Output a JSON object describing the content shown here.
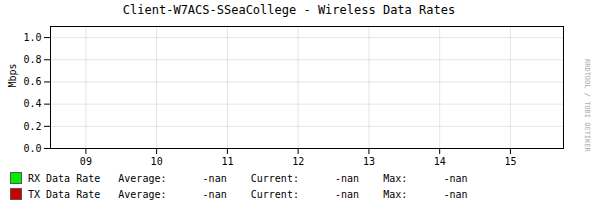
{
  "chart_data": {
    "type": "line",
    "title": "Client-W7ACS-SSeaCollege - Wireless Data Rates",
    "ylabel": "Mbps",
    "xlim": [
      8.5,
      15.75
    ],
    "xticks": [
      {
        "value": 9,
        "label": "09"
      },
      {
        "value": 10,
        "label": "10"
      },
      {
        "value": 11,
        "label": "11"
      },
      {
        "value": 12,
        "label": "12"
      },
      {
        "value": 13,
        "label": "13"
      },
      {
        "value": 14,
        "label": "14"
      },
      {
        "value": 15,
        "label": "15"
      }
    ],
    "ylim": [
      0.0,
      1.1
    ],
    "yticks": [
      {
        "value": 0.0,
        "label": "0.0"
      },
      0.2,
      0.4,
      0.6,
      0.8,
      {
        "value": 1.0,
        "label": "1.0"
      }
    ],
    "grid": true,
    "x": [],
    "series": [
      {
        "name": "RX Data Rate",
        "color": "#00ee00",
        "values": [],
        "stats": "Average:      -nan    Current:      -nan    Max:      -nan"
      },
      {
        "name": "TX Data Rate",
        "color": "#cc0000",
        "values": [],
        "stats": "Average:      -nan    Current:      -nan    Max:      -nan"
      }
    ],
    "annotations": [
      "RRDTOOL / TOBI OETIKER"
    ]
  }
}
